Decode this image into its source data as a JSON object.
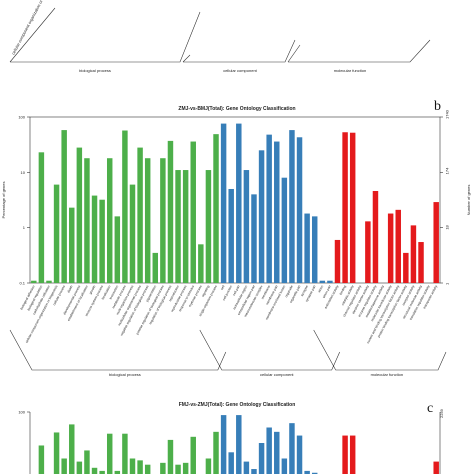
{
  "panel_letters": [
    "b",
    "c"
  ],
  "top_fragment": {
    "group_labels": [
      "biological process",
      "cellular component",
      "molecular function"
    ],
    "visible_tick_labels": [
      "cellular component organization or biogenesis"
    ]
  },
  "chart_data": [
    {
      "type": "bar",
      "panel": "b",
      "title": "ZMJ-vs-BMJ(Total): Gene Ontology Classification",
      "ylabel_left": "Percentage of genes",
      "ylabel_right": "Number of genes",
      "yscale": "log",
      "ylim": [
        0.1,
        100
      ],
      "left_ticks": [
        "0.1",
        "1",
        "10",
        "100"
      ],
      "right_ticks": [
        "1",
        "18",
        "174",
        "1740"
      ],
      "groups": [
        "biological process",
        "cellular component",
        "molecular function"
      ],
      "group_colors": {
        "biological process": "#4daf4a",
        "cellular component": "#377eb8",
        "molecular function": "#e41a1c"
      },
      "categories": [
        "biological adhesion",
        "biological regulation",
        "carbohydrate utilization",
        "cellular component organization or biogenesis",
        "cellular process",
        "death",
        "developmental process",
        "establishment of localization",
        "growth",
        "immune system process",
        "localization",
        "locomotion",
        "metabolic process",
        "multi-organism process",
        "multicellular organismal process",
        "negative regulation of biological process",
        "pigmentation",
        "positive regulation of biological process",
        "regulation of biological process",
        "reproduction",
        "reproductive process",
        "response to stimulus",
        "rhythmic process",
        "signaling",
        "single-organism process",
        "cell",
        "cell junction",
        "cell part",
        "extracellular region",
        "extracellular region part",
        "macromolecular complex",
        "membrane",
        "membrane part",
        "membrane-enclosed lumen",
        "organelle",
        "organelle part",
        "synapse",
        "synapse part",
        "virion",
        "virion part",
        "antioxidant activity",
        "binding",
        "catalytic activity",
        "channel regulator activity",
        "electron carrier activity",
        "enzyme regulator activity",
        "metallochaperone activity",
        "molecular transducer activity",
        "nucleic acid binding transcription factor activity",
        "protein binding transcription factor activity",
        "receptor activity",
        "structural molecule activity",
        "translation regulator activity",
        "transporter activity"
      ],
      "values": [
        0.11,
        23,
        0.11,
        6,
        58,
        2.3,
        28,
        18,
        3.8,
        3.2,
        18,
        1.6,
        57,
        6,
        28,
        18,
        0.35,
        18,
        37,
        11,
        11,
        36,
        0.5,
        11,
        49,
        76,
        5,
        76,
        11,
        4,
        25,
        48,
        36,
        8,
        58,
        43,
        1.8,
        1.6,
        0.11,
        0.11,
        0.6,
        53,
        52,
        0.08,
        1.3,
        4.6,
        0.05,
        1.8,
        2.1,
        0.35,
        1.1,
        0.55,
        0.09,
        2.9
      ],
      "group_of_bar": [
        "biological process",
        "biological process",
        "biological process",
        "biological process",
        "biological process",
        "biological process",
        "biological process",
        "biological process",
        "biological process",
        "biological process",
        "biological process",
        "biological process",
        "biological process",
        "biological process",
        "biological process",
        "biological process",
        "biological process",
        "biological process",
        "biological process",
        "biological process",
        "biological process",
        "biological process",
        "biological process",
        "biological process",
        "biological process",
        "cellular component",
        "cellular component",
        "cellular component",
        "cellular component",
        "cellular component",
        "cellular component",
        "cellular component",
        "cellular component",
        "cellular component",
        "cellular component",
        "cellular component",
        "cellular component",
        "cellular component",
        "cellular component",
        "cellular component",
        "molecular function",
        "molecular function",
        "molecular function",
        "molecular function",
        "molecular function",
        "molecular function",
        "molecular function",
        "molecular function",
        "molecular function",
        "molecular function",
        "molecular function",
        "molecular function",
        "molecular function",
        "molecular function"
      ]
    },
    {
      "type": "bar",
      "panel": "c",
      "title": "FMJ-vs-ZMJ(Total): Gene Ontology Classification",
      "yscale": "log",
      "left_ticks": [
        "100"
      ],
      "right_ticks": [
        "2259"
      ],
      "group_colors": {
        "biological process": "#4daf4a",
        "cellular component": "#377eb8",
        "molecular function": "#e41a1c"
      },
      "visible_bar_tops": [
        0,
        0.46,
        0,
        0.67,
        0.25,
        0.8,
        0.2,
        0.38,
        0.1,
        0.05,
        0.65,
        0.05,
        0.65,
        0.25,
        0.22,
        0.15,
        0,
        0.18,
        0.55,
        0.15,
        0.18,
        0.6,
        0,
        0.25,
        0.68,
        0.95,
        0.35,
        0.95,
        0.2,
        0.08,
        0.5,
        0.75,
        0.68,
        0.25,
        0.82,
        0.62,
        0.05,
        0.02,
        0,
        0,
        0,
        0.62,
        0.62,
        0,
        0,
        0,
        0,
        0,
        0,
        0,
        0,
        0,
        0,
        0.2
      ]
    }
  ]
}
